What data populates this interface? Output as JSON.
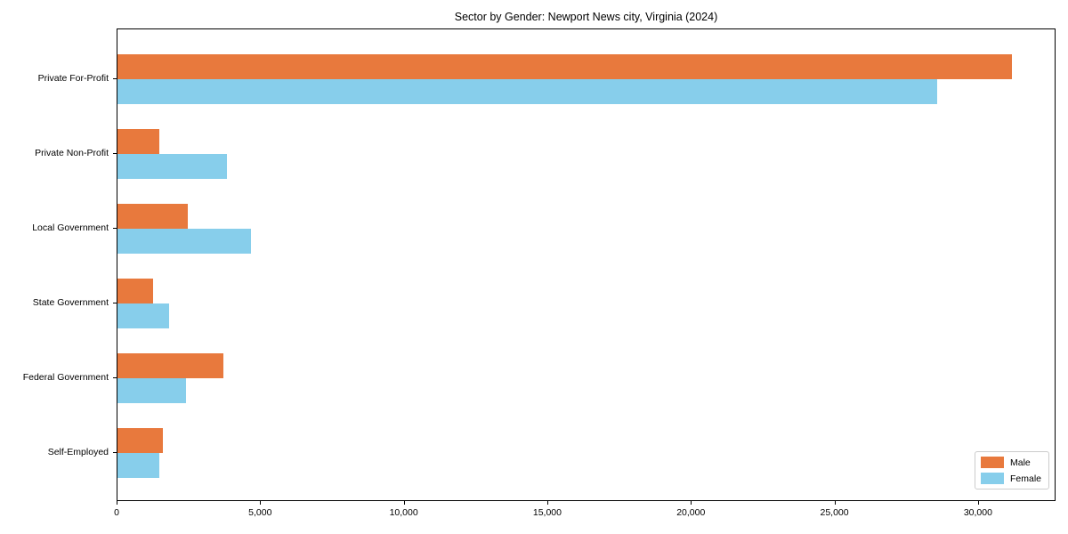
{
  "chart_data": {
    "type": "bar",
    "orientation": "horizontal",
    "title": "Sector by Gender: Newport News city, Virginia (2024)",
    "categories": [
      "Private For-Profit",
      "Private Non-Profit",
      "Local Government",
      "State Government",
      "Federal Government",
      "Self-Employed"
    ],
    "series": [
      {
        "name": "Male",
        "color": "#e8793d",
        "values": [
          31150,
          1450,
          2450,
          1230,
          3690,
          1570
        ]
      },
      {
        "name": "Female",
        "color": "#87ceeb",
        "values": [
          28550,
          3800,
          4650,
          1800,
          2380,
          1470
        ]
      }
    ],
    "xlabel": "",
    "ylabel": "",
    "xlim": [
      0,
      32700
    ],
    "x_tick_values": [
      0,
      5000,
      10000,
      15000,
      20000,
      25000,
      30000
    ],
    "x_tick_labels": [
      "0",
      "5,000",
      "10,000",
      "15,000",
      "20,000",
      "25,000",
      "30,000"
    ],
    "grid": false,
    "legend_position": "lower right",
    "frame_color": "#000000",
    "background_color": "#ffffff"
  }
}
